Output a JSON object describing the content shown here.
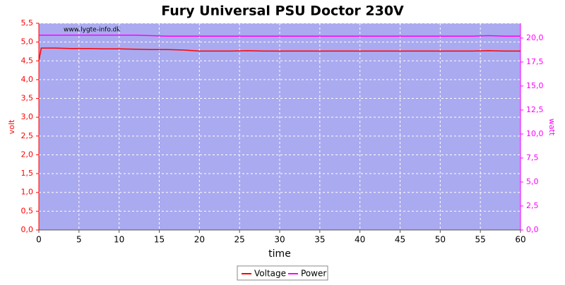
{
  "chart_data": {
    "type": "line",
    "title": "Fury Universal PSU Doctor 230V",
    "watermark": "www.lygte-info.dk",
    "x_label": "time",
    "y_label": "volt",
    "y2_label": "watt",
    "x": [
      0,
      0.3,
      2,
      4,
      6,
      8,
      10,
      12,
      14,
      16,
      18,
      20,
      22,
      24,
      26,
      28,
      30,
      32,
      34,
      36,
      38,
      40,
      42,
      44,
      46,
      48,
      50,
      52,
      54,
      56,
      58,
      60
    ],
    "series": [
      {
        "name": "Voltage",
        "color": "#ff0000",
        "axis": "y",
        "values": [
          4.5,
          4.84,
          4.84,
          4.83,
          4.83,
          4.82,
          4.82,
          4.81,
          4.8,
          4.8,
          4.79,
          4.76,
          4.76,
          4.76,
          4.77,
          4.76,
          4.76,
          4.76,
          4.76,
          4.76,
          4.76,
          4.76,
          4.76,
          4.76,
          4.76,
          4.76,
          4.76,
          4.76,
          4.76,
          4.77,
          4.76,
          4.76
        ]
      },
      {
        "name": "Power",
        "color": "#ff00ff",
        "axis": "y2",
        "values": [
          20.3,
          20.3,
          20.3,
          20.3,
          20.3,
          20.3,
          20.3,
          20.3,
          20.25,
          20.2,
          20.2,
          20.2,
          20.2,
          20.2,
          20.2,
          20.2,
          20.2,
          20.2,
          20.2,
          20.2,
          20.2,
          20.2,
          20.2,
          20.2,
          20.2,
          20.2,
          20.2,
          20.2,
          20.2,
          20.25,
          20.2,
          20.2
        ]
      }
    ],
    "xlim": [
      0,
      60
    ],
    "xticks": [
      0,
      5,
      10,
      15,
      20,
      25,
      30,
      35,
      40,
      45,
      50,
      55,
      60
    ],
    "ylim": [
      0,
      5.5
    ],
    "yticks": [
      {
        "value": 0,
        "label": "0,0"
      },
      {
        "value": 0.5,
        "label": "0,5"
      },
      {
        "value": 1,
        "label": "1,0"
      },
      {
        "value": 1.5,
        "label": "1,5"
      },
      {
        "value": 2,
        "label": "2,0"
      },
      {
        "value": 2.5,
        "label": "2,5"
      },
      {
        "value": 3,
        "label": "3,0"
      },
      {
        "value": 3.5,
        "label": "3,5"
      },
      {
        "value": 4,
        "label": "4,0"
      },
      {
        "value": 4.5,
        "label": "4,5"
      },
      {
        "value": 5,
        "label": "5,0"
      },
      {
        "value": 5.5,
        "label": "5,5"
      }
    ],
    "y2lim": [
      0,
      21.54
    ],
    "y2ticks": [
      {
        "value": 0,
        "label": "0,0"
      },
      {
        "value": 2.5,
        "label": "2,5"
      },
      {
        "value": 5,
        "label": "5,0"
      },
      {
        "value": 7.5,
        "label": "7,5"
      },
      {
        "value": 10,
        "label": "10,0"
      },
      {
        "value": 12.5,
        "label": "12,5"
      },
      {
        "value": 15,
        "label": "15,0"
      },
      {
        "value": 17.5,
        "label": "17,5"
      },
      {
        "value": 20,
        "label": "20,0"
      }
    ],
    "grid": true,
    "legend": "bottom"
  }
}
